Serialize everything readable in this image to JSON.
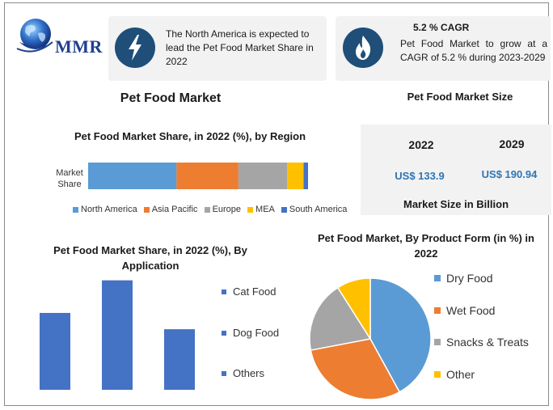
{
  "brand": {
    "name": "MMR"
  },
  "card_north_america": {
    "icon": "lightning-bolt-icon",
    "text": "The North America is expected to lead the Pet Food Market Share in 2022"
  },
  "card_cagr": {
    "icon": "flame-icon",
    "title": "5.2 % CAGR",
    "text": "Pet Food Market to grow at a CAGR of 5.2 % during 2023-2029"
  },
  "title_left": "Pet Food Market",
  "title_right": "Pet Food Market Size",
  "market_size": {
    "years": [
      "2022",
      "2029"
    ],
    "values": [
      "US$ 133.9",
      "US$ 190.94"
    ],
    "caption": "Market Size in Billion"
  },
  "colors": {
    "blue": "#5b9bd5",
    "orange": "#ed7d31",
    "gray": "#a5a5a5",
    "yellow": "#ffc000",
    "dark_blue": "#4472c4",
    "icon_circle": "#1f4e79",
    "value_text": "#2e75b6"
  },
  "region_chart": {
    "title": "Pet Food Market Share, in 2022 (%), by Region",
    "category_label": "Market Share",
    "legend": [
      "North America",
      "Asia Pacific",
      "Europe",
      "MEA",
      "South America"
    ]
  },
  "application_chart": {
    "title": "Pet Food Market Share, in 2022 (%), By Application",
    "legend": [
      "Cat Food",
      "Dog Food",
      "Others"
    ]
  },
  "form_chart": {
    "title": "Pet Food Market, By Product Form (in %) in 2022",
    "legend": [
      "Dry Food",
      "Wet Food",
      "Snacks & Treats",
      "Other"
    ]
  },
  "chart_data": [
    {
      "type": "bar",
      "orientation": "horizontal",
      "stacked": true,
      "title": "Pet Food Market Share, in 2022 (%), by Region",
      "categories": [
        "Market Share"
      ],
      "series": [
        {
          "name": "North America",
          "values": [
            40
          ],
          "color": "#5b9bd5"
        },
        {
          "name": "Asia Pacific",
          "values": [
            28
          ],
          "color": "#ed7d31"
        },
        {
          "name": "Europe",
          "values": [
            22
          ],
          "color": "#a5a5a5"
        },
        {
          "name": "MEA",
          "values": [
            7.5
          ],
          "color": "#ffc000"
        },
        {
          "name": "South America",
          "values": [
            2
          ],
          "color": "#4472c4"
        }
      ],
      "legend_position": "bottom"
    },
    {
      "type": "bar",
      "title": "Pet Food Market Share, in 2022 (%), By Application",
      "categories": [
        "Cat Food",
        "Dog Food",
        "Others"
      ],
      "values": [
        33,
        47,
        26
      ],
      "color": "#4472c4",
      "ylim": [
        0,
        50
      ],
      "legend_position": "right"
    },
    {
      "type": "pie",
      "title": "Pet Food Market, By Product Form (in %) in 2022",
      "categories": [
        "Dry Food",
        "Wet Food",
        "Snacks & Treats",
        "Other"
      ],
      "values": [
        42,
        30,
        19,
        9
      ],
      "colors": [
        "#5b9bd5",
        "#ed7d31",
        "#a5a5a5",
        "#ffc000"
      ],
      "legend_position": "right"
    }
  ]
}
